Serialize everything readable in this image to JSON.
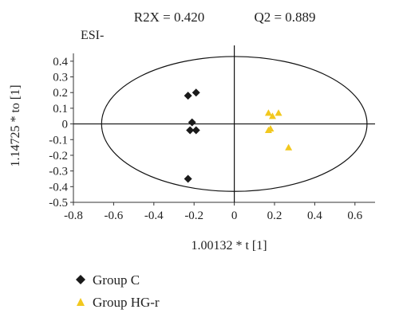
{
  "chart_data": {
    "type": "scatter",
    "header_left": "R2X = 0.420",
    "header_right": "Q2 = 0.889",
    "mode_label": "ESI-",
    "xlabel": "1.00132 * t [1]",
    "ylabel": "1.14725 * to [1]",
    "xlim": [
      -0.8,
      0.7
    ],
    "ylim": [
      -0.5,
      0.45
    ],
    "xticks": [
      "-0.8",
      "-0.6",
      "-0.4",
      "-0.2",
      "0",
      "0.2",
      "0.4",
      "0.6"
    ],
    "yticks": [
      "0.4",
      "0.3",
      "0.2",
      "0.1",
      "0",
      "-0.1",
      "-0.2",
      "-0.3",
      "-0.4",
      "-0.5"
    ],
    "ellipse": {
      "cx": 0.0,
      "cy": 0.0,
      "rx": 0.66,
      "ry": 0.43
    },
    "series": [
      {
        "name": "Group C",
        "marker": "diamond",
        "color": "#1a1a1a",
        "points": [
          [
            -0.23,
            0.18
          ],
          [
            -0.19,
            0.2
          ],
          [
            -0.21,
            0.01
          ],
          [
            -0.22,
            -0.04
          ],
          [
            -0.19,
            -0.04
          ],
          [
            -0.23,
            -0.35
          ]
        ]
      },
      {
        "name": "Group HG-r",
        "marker": "triangle",
        "color": "#f2c81e",
        "points": [
          [
            0.17,
            0.07
          ],
          [
            0.19,
            0.05
          ],
          [
            0.22,
            0.07
          ],
          [
            0.18,
            -0.03
          ],
          [
            0.17,
            -0.04
          ],
          [
            0.27,
            -0.15
          ]
        ]
      }
    ]
  }
}
